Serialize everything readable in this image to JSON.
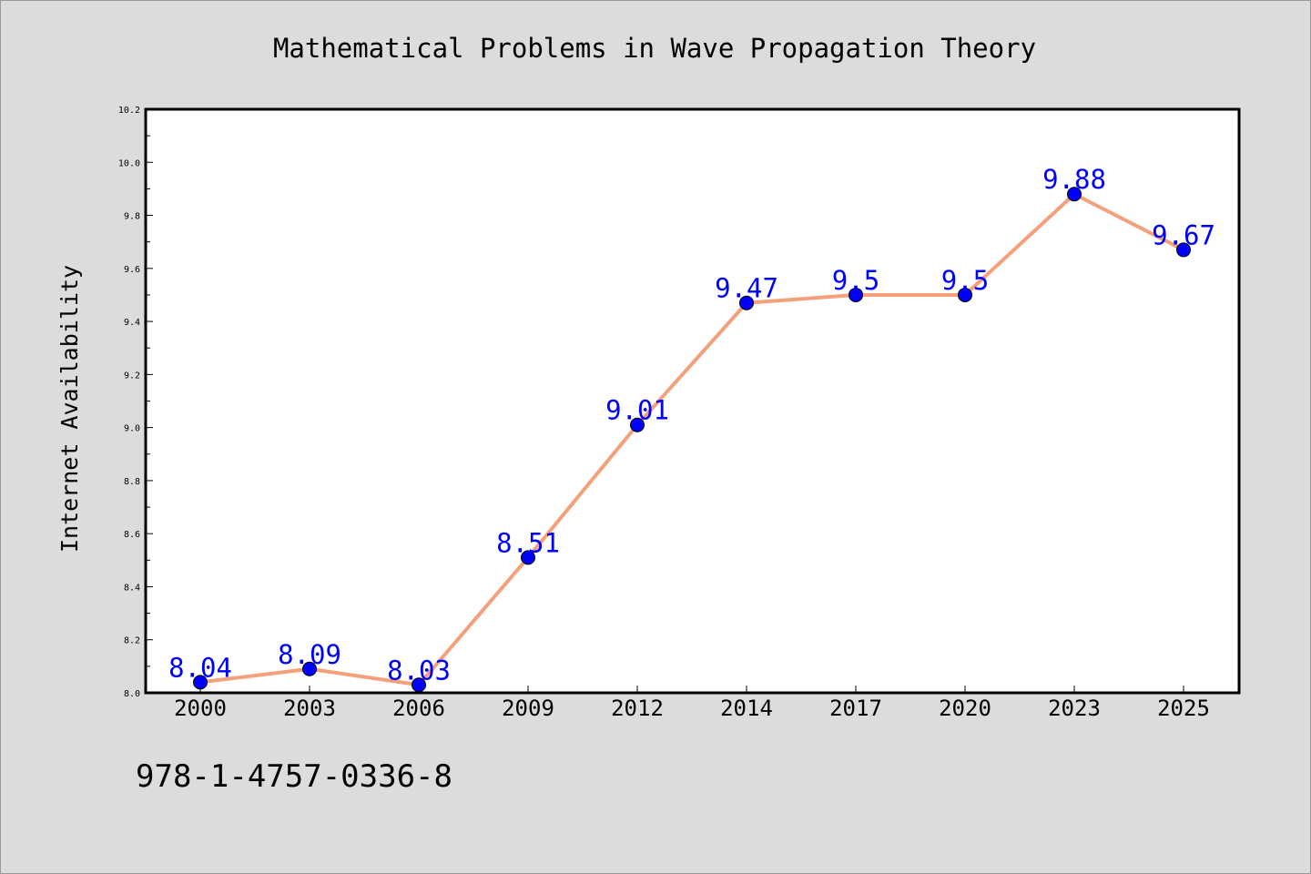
{
  "footer": {
    "isbn": "978-1-4757-0336-8"
  },
  "colors": {
    "background": "#dcdcdc",
    "plot_background": "#ffffff",
    "line": "#f4a07a",
    "marker": "#0000ff",
    "data_label": "#0000ff"
  },
  "chart_data": {
    "type": "line",
    "title": "Mathematical Problems in Wave Propagation Theory",
    "xlabel": "",
    "ylabel": "Internet Availability",
    "categories": [
      "2000",
      "2003",
      "2006",
      "2009",
      "2012",
      "2014",
      "2017",
      "2020",
      "2023",
      "2025"
    ],
    "series": [
      {
        "values": [
          8.04,
          8.09,
          8.03,
          8.51,
          9.01,
          9.47,
          9.5,
          9.5,
          9.88,
          9.67
        ],
        "labels": [
          "8.04",
          "8.09",
          "8.03",
          "8.51",
          "9.01",
          "9.47",
          "9.5",
          "9.5",
          "9.88",
          "9.67"
        ]
      }
    ],
    "ylim": [
      8.0,
      10.2
    ],
    "yticks": [
      "8.0",
      "8.2",
      "8.4",
      "8.6",
      "8.8",
      "9.0",
      "9.2",
      "9.4",
      "9.6",
      "9.8",
      "10.0",
      "10.2"
    ],
    "grid": false,
    "legend": "none",
    "markers": true
  }
}
